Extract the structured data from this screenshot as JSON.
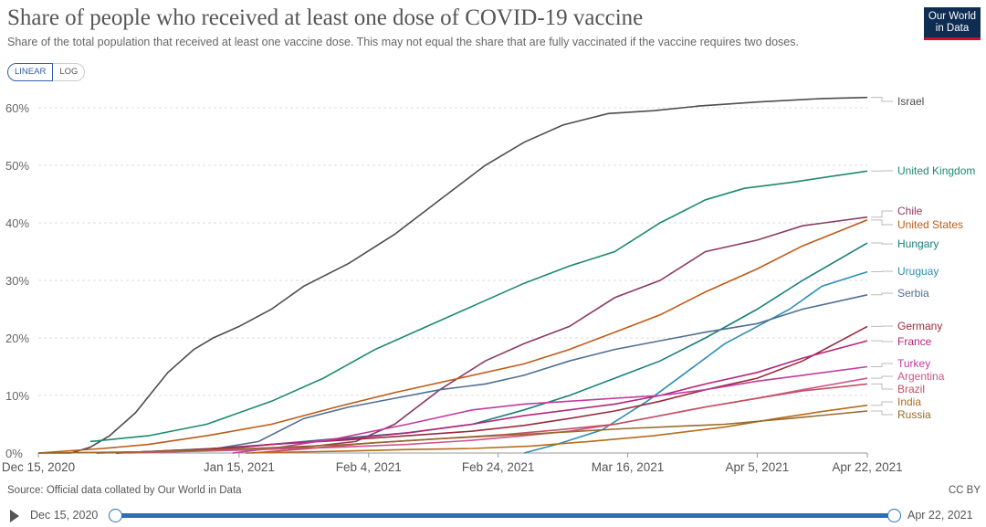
{
  "title": "Share of people who received at least one dose of COVID-19 vaccine",
  "subtitle": "Share of the total population that received at least one vaccine dose. This may not equal the share that are fully vaccinated if the vaccine requires two doses.",
  "logo": {
    "line1": "Our World",
    "line2": "in Data"
  },
  "scale_toggle": {
    "linear": "LINEAR",
    "log": "LOG",
    "selected": "LINEAR"
  },
  "source": "Source: Official data collated by Our World in Data",
  "license": "CC BY",
  "timeline": {
    "start": "Dec 15, 2020",
    "end": "Apr 22, 2021"
  },
  "colors": {
    "accent": "#2a6fb5",
    "brand": "#0f2c52"
  },
  "chart_data": {
    "type": "line",
    "x_axis": {
      "type": "date",
      "min": "2020-12-15",
      "max": "2021-04-22",
      "ticks": [
        "Dec 15, 2020",
        "Jan 15, 2021",
        "Feb 4, 2021",
        "Feb 24, 2021",
        "Mar 16, 2021",
        "Apr 5, 2021",
        "Apr 22, 2021"
      ]
    },
    "y_axis": {
      "min": 0,
      "max": 62,
      "unit": "%",
      "ticks": [
        "0%",
        "10%",
        "20%",
        "30%",
        "40%",
        "50%",
        "60%"
      ]
    },
    "grid": "horizontal dashed",
    "legend": "right, labels at line ends",
    "series": [
      {
        "name": "Israel",
        "color": "#4d4d4d",
        "points": [
          [
            "2020-12-15",
            0
          ],
          [
            "2020-12-20",
            0
          ],
          [
            "2020-12-23",
            1
          ],
          [
            "2020-12-26",
            3
          ],
          [
            "2020-12-30",
            7
          ],
          [
            "2021-01-04",
            14
          ],
          [
            "2021-01-08",
            18
          ],
          [
            "2021-01-11",
            20
          ],
          [
            "2021-01-15",
            22
          ],
          [
            "2021-01-20",
            25
          ],
          [
            "2021-01-25",
            29
          ],
          [
            "2021-02-01",
            33
          ],
          [
            "2021-02-08",
            38
          ],
          [
            "2021-02-15",
            44
          ],
          [
            "2021-02-22",
            50
          ],
          [
            "2021-02-28",
            54
          ],
          [
            "2021-03-06",
            57
          ],
          [
            "2021-03-13",
            59
          ],
          [
            "2021-03-20",
            59.5
          ],
          [
            "2021-03-27",
            60.3
          ],
          [
            "2021-04-05",
            61
          ],
          [
            "2021-04-15",
            61.6
          ],
          [
            "2021-04-22",
            61.8
          ]
        ]
      },
      {
        "name": "United Kingdom",
        "color": "#1b8a6b",
        "points": [
          [
            "2020-12-23",
            2
          ],
          [
            "2021-01-01",
            3
          ],
          [
            "2021-01-10",
            5
          ],
          [
            "2021-01-20",
            9
          ],
          [
            "2021-01-28",
            13
          ],
          [
            "2021-02-05",
            18
          ],
          [
            "2021-02-13",
            22
          ],
          [
            "2021-02-21",
            26
          ],
          [
            "2021-02-28",
            29.5
          ],
          [
            "2021-03-07",
            32.5
          ],
          [
            "2021-03-14",
            35
          ],
          [
            "2021-03-21",
            40
          ],
          [
            "2021-03-28",
            44
          ],
          [
            "2021-04-03",
            46
          ],
          [
            "2021-04-10",
            47
          ],
          [
            "2021-04-16",
            48
          ],
          [
            "2021-04-22",
            49
          ]
        ]
      },
      {
        "name": "Chile",
        "color": "#8c3a62",
        "points": [
          [
            "2020-12-24",
            0
          ],
          [
            "2021-01-10",
            0.5
          ],
          [
            "2021-01-25",
            1
          ],
          [
            "2021-02-02",
            2
          ],
          [
            "2021-02-08",
            5
          ],
          [
            "2021-02-15",
            11
          ],
          [
            "2021-02-22",
            16
          ],
          [
            "2021-02-28",
            19
          ],
          [
            "2021-03-07",
            22
          ],
          [
            "2021-03-14",
            27
          ],
          [
            "2021-03-21",
            30
          ],
          [
            "2021-03-28",
            35
          ],
          [
            "2021-04-05",
            37
          ],
          [
            "2021-04-12",
            39.5
          ],
          [
            "2021-04-22",
            41
          ]
        ]
      },
      {
        "name": "United States",
        "color": "#c05917",
        "points": [
          [
            "2020-12-15",
            0
          ],
          [
            "2020-12-25",
            0.8
          ],
          [
            "2021-01-01",
            1.5
          ],
          [
            "2021-01-10",
            3
          ],
          [
            "2021-01-20",
            5
          ],
          [
            "2021-01-30",
            8
          ],
          [
            "2021-02-08",
            10.5
          ],
          [
            "2021-02-18",
            13
          ],
          [
            "2021-02-28",
            15.5
          ],
          [
            "2021-03-07",
            18
          ],
          [
            "2021-03-14",
            21
          ],
          [
            "2021-03-21",
            24
          ],
          [
            "2021-03-28",
            28
          ],
          [
            "2021-04-05",
            32
          ],
          [
            "2021-04-12",
            36
          ],
          [
            "2021-04-22",
            40.5
          ]
        ]
      },
      {
        "name": "Hungary",
        "color": "#18807a",
        "points": [
          [
            "2020-12-27",
            0
          ],
          [
            "2021-01-15",
            1
          ],
          [
            "2021-01-30",
            2.5
          ],
          [
            "2021-02-10",
            3.5
          ],
          [
            "2021-02-20",
            5
          ],
          [
            "2021-02-28",
            7.5
          ],
          [
            "2021-03-07",
            10
          ],
          [
            "2021-03-14",
            13
          ],
          [
            "2021-03-21",
            16
          ],
          [
            "2021-03-28",
            20
          ],
          [
            "2021-04-05",
            25
          ],
          [
            "2021-04-12",
            30
          ],
          [
            "2021-04-22",
            36.5
          ]
        ]
      },
      {
        "name": "Uruguay",
        "color": "#2f8db4",
        "points": [
          [
            "2021-02-28",
            0
          ],
          [
            "2021-03-05",
            1.5
          ],
          [
            "2021-03-12",
            4
          ],
          [
            "2021-03-19",
            9
          ],
          [
            "2021-03-25",
            14
          ],
          [
            "2021-03-31",
            19
          ],
          [
            "2021-04-05",
            22
          ],
          [
            "2021-04-10",
            25
          ],
          [
            "2021-04-15",
            29
          ],
          [
            "2021-04-22",
            31.5
          ]
        ]
      },
      {
        "name": "Serbia",
        "color": "#4f6f94",
        "points": [
          [
            "2020-12-24",
            0
          ],
          [
            "2021-01-10",
            0.5
          ],
          [
            "2021-01-18",
            2
          ],
          [
            "2021-01-25",
            6
          ],
          [
            "2021-02-01",
            8
          ],
          [
            "2021-02-08",
            9.5
          ],
          [
            "2021-02-15",
            11
          ],
          [
            "2021-02-22",
            12
          ],
          [
            "2021-02-28",
            13.5
          ],
          [
            "2021-03-07",
            16
          ],
          [
            "2021-03-14",
            18
          ],
          [
            "2021-03-21",
            19.5
          ],
          [
            "2021-03-28",
            21
          ],
          [
            "2021-04-05",
            22.5
          ],
          [
            "2021-04-12",
            25
          ],
          [
            "2021-04-22",
            27.5
          ]
        ]
      },
      {
        "name": "Germany",
        "color": "#9a2a3c",
        "points": [
          [
            "2020-12-27",
            0
          ],
          [
            "2021-01-10",
            0.7
          ],
          [
            "2021-01-20",
            1.5
          ],
          [
            "2021-02-01",
            2.3
          ],
          [
            "2021-02-10",
            3
          ],
          [
            "2021-02-20",
            3.8
          ],
          [
            "2021-02-28",
            4.8
          ],
          [
            "2021-03-07",
            6
          ],
          [
            "2021-03-14",
            7.3
          ],
          [
            "2021-03-21",
            9
          ],
          [
            "2021-03-28",
            11
          ],
          [
            "2021-04-05",
            13
          ],
          [
            "2021-04-12",
            16
          ],
          [
            "2021-04-22",
            22
          ]
        ]
      },
      {
        "name": "France",
        "color": "#b4267a",
        "points": [
          [
            "2020-12-27",
            0
          ],
          [
            "2021-01-10",
            0.4
          ],
          [
            "2021-01-20",
            1.5
          ],
          [
            "2021-02-01",
            2.5
          ],
          [
            "2021-02-10",
            3.5
          ],
          [
            "2021-02-20",
            5
          ],
          [
            "2021-02-28",
            6.5
          ],
          [
            "2021-03-07",
            7.5
          ],
          [
            "2021-03-14",
            8.5
          ],
          [
            "2021-03-21",
            10
          ],
          [
            "2021-03-28",
            12
          ],
          [
            "2021-04-05",
            14
          ],
          [
            "2021-04-12",
            16.5
          ],
          [
            "2021-04-22",
            19.5
          ]
        ]
      },
      {
        "name": "Turkey",
        "color": "#c13ba0",
        "points": [
          [
            "2021-01-14",
            0
          ],
          [
            "2021-01-20",
            0.8
          ],
          [
            "2021-01-30",
            2.5
          ],
          [
            "2021-02-10",
            5
          ],
          [
            "2021-02-20",
            7.5
          ],
          [
            "2021-02-28",
            8.5
          ],
          [
            "2021-03-07",
            9
          ],
          [
            "2021-03-14",
            9.5
          ],
          [
            "2021-03-21",
            10
          ],
          [
            "2021-03-28",
            11
          ],
          [
            "2021-04-05",
            12.5
          ],
          [
            "2021-04-12",
            13.5
          ],
          [
            "2021-04-22",
            15
          ]
        ]
      },
      {
        "name": "Argentina",
        "color": "#d0548a",
        "points": [
          [
            "2020-12-29",
            0
          ],
          [
            "2021-01-15",
            0.5
          ],
          [
            "2021-01-30",
            1
          ],
          [
            "2021-02-10",
            1.5
          ],
          [
            "2021-02-20",
            2.2
          ],
          [
            "2021-02-28",
            3
          ],
          [
            "2021-03-07",
            3.8
          ],
          [
            "2021-03-14",
            5
          ],
          [
            "2021-03-21",
            6.5
          ],
          [
            "2021-03-28",
            8
          ],
          [
            "2021-04-05",
            9.5
          ],
          [
            "2021-04-12",
            11
          ],
          [
            "2021-04-22",
            13
          ]
        ]
      },
      {
        "name": "Brazil",
        "color": "#c44e62",
        "points": [
          [
            "2021-01-17",
            0
          ],
          [
            "2021-01-25",
            0.7
          ],
          [
            "2021-02-05",
            1.8
          ],
          [
            "2021-02-15",
            2.5
          ],
          [
            "2021-02-25",
            3.2
          ],
          [
            "2021-03-05",
            4
          ],
          [
            "2021-03-14",
            5
          ],
          [
            "2021-03-21",
            6.5
          ],
          [
            "2021-03-28",
            8
          ],
          [
            "2021-04-05",
            9.5
          ],
          [
            "2021-04-12",
            10.8
          ],
          [
            "2021-04-22",
            12
          ]
        ]
      },
      {
        "name": "India",
        "color": "#b56c1a",
        "points": [
          [
            "2021-01-16",
            0
          ],
          [
            "2021-01-30",
            0.3
          ],
          [
            "2021-02-10",
            0.6
          ],
          [
            "2021-02-20",
            0.8
          ],
          [
            "2021-03-01",
            1.2
          ],
          [
            "2021-03-10",
            2
          ],
          [
            "2021-03-20",
            3
          ],
          [
            "2021-03-31",
            4.5
          ],
          [
            "2021-04-08",
            6
          ],
          [
            "2021-04-15",
            7.2
          ],
          [
            "2021-04-22",
            8.3
          ]
        ]
      },
      {
        "name": "Russia",
        "color": "#946b2d",
        "points": [
          [
            "2020-12-15",
            0
          ],
          [
            "2021-01-01",
            0.2
          ],
          [
            "2021-01-15",
            0.7
          ],
          [
            "2021-02-01",
            1.5
          ],
          [
            "2021-02-15",
            2.5
          ],
          [
            "2021-03-01",
            3.3
          ],
          [
            "2021-03-15",
            4.2
          ],
          [
            "2021-03-31",
            5
          ],
          [
            "2021-04-10",
            6
          ],
          [
            "2021-04-22",
            7.3
          ]
        ]
      }
    ]
  }
}
